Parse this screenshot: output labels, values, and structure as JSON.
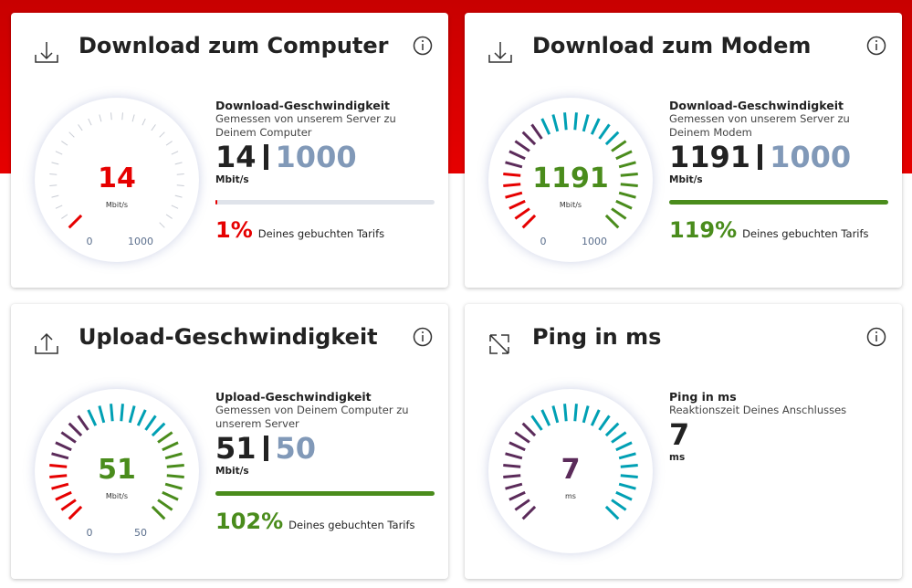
{
  "cards": [
    {
      "title": "Download zum Computer",
      "icon": "download",
      "value": 14,
      "unit": "Mbit/s",
      "scale_min": 0,
      "heading": "Download-Geschwindigkeit",
      "description": "Gemessen von unserem Server zu Deinem Computer",
      "tariff": 1000,
      "percent": {
        "value": 1,
        "label": "1%"
      },
      "percent_caption": "Deines gebuchten Tarifs",
      "color": "#e60000"
    },
    {
      "title": "Download zum Modem",
      "icon": "download",
      "value": 1191,
      "unit": "Mbit/s",
      "scale_min": 0,
      "heading": "Download-Geschwindigkeit",
      "description": "Gemessen von unserem Server zu Deinem Modem",
      "tariff": 1000,
      "percent": {
        "value": 119,
        "label": "119%"
      },
      "percent_caption": "Deines gebuchten Tarifs",
      "color": "#4a8c1c"
    },
    {
      "title": "Upload-Geschwindigkeit",
      "icon": "upload",
      "value": 51,
      "unit": "Mbit/s",
      "scale_min": 0,
      "heading": "Upload-Geschwindigkeit",
      "description": "Gemessen von Deinem Computer zu unserem Server",
      "tariff": 50,
      "percent": {
        "value": 102,
        "label": "102%"
      },
      "percent_caption": "Deines gebuchten Tarifs",
      "color": "#4a8c1c"
    },
    {
      "title": "Ping in ms",
      "icon": "ping",
      "value": 7,
      "unit": "ms",
      "heading": "Ping in ms",
      "description": "Reaktionszeit Deines Anschlusses",
      "color": "#5b2b5a"
    }
  ]
}
